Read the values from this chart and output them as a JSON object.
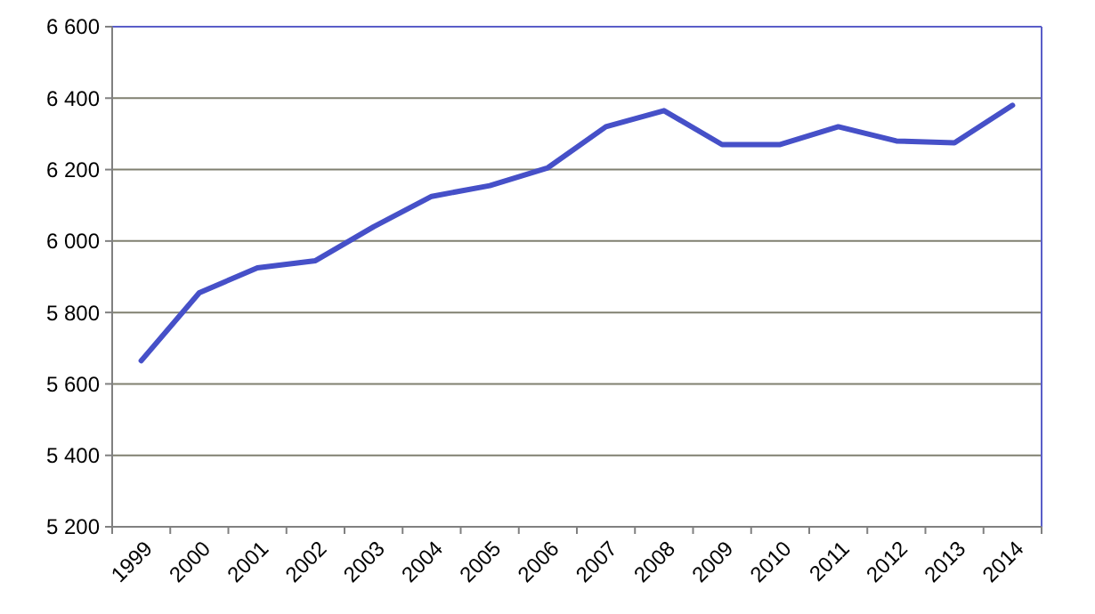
{
  "chart_data": {
    "type": "line",
    "categories": [
      "1999",
      "2000",
      "2001",
      "2002",
      "2003",
      "2004",
      "2005",
      "2006",
      "2007",
      "2008",
      "2009",
      "2010",
      "2011",
      "2012",
      "2013",
      "2014"
    ],
    "series": [
      {
        "color": "#4650c8",
        "values": [
          5665,
          5855,
          5925,
          5945,
          6040,
          6125,
          6155,
          6205,
          6320,
          6365,
          6270,
          6270,
          6320,
          6280,
          6275,
          6380
        ]
      }
    ],
    "ylim": [
      5200,
      6600
    ],
    "yticks": [
      {
        "value": 5200,
        "label": "5 200"
      },
      {
        "value": 5400,
        "label": "5 400"
      },
      {
        "value": 5600,
        "label": "5 600"
      },
      {
        "value": 5800,
        "label": "5 800"
      },
      {
        "value": 6000,
        "label": "6 000"
      },
      {
        "value": 6200,
        "label": "6 200"
      },
      {
        "value": 6400,
        "label": "6 400"
      },
      {
        "value": 6600,
        "label": "6 600"
      }
    ],
    "grid": "y",
    "marker": "none",
    "line_style": "solid"
  }
}
